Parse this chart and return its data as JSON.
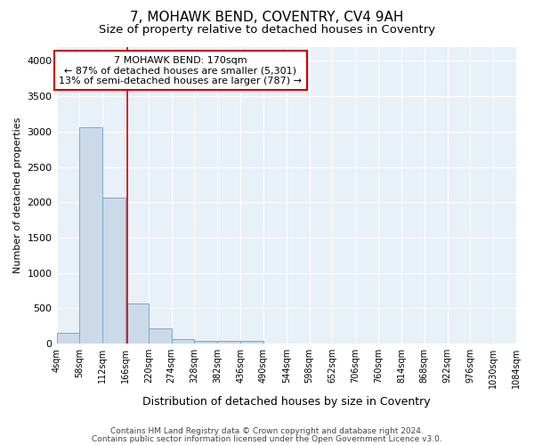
{
  "title": "7, MOHAWK BEND, COVENTRY, CV4 9AH",
  "subtitle": "Size of property relative to detached houses in Coventry",
  "xlabel": "Distribution of detached houses by size in Coventry",
  "ylabel": "Number of detached properties",
  "footnote1": "Contains HM Land Registry data © Crown copyright and database right 2024.",
  "footnote2": "Contains public sector information licensed under the Open Government Licence v3.0.",
  "bin_edges": [
    4,
    58,
    112,
    166,
    220,
    274,
    328,
    382,
    436,
    490,
    544,
    598,
    652,
    706,
    760,
    814,
    868,
    922,
    976,
    1030,
    1084
  ],
  "bar_heights": [
    150,
    3060,
    2060,
    570,
    210,
    65,
    40,
    40,
    40,
    0,
    0,
    0,
    0,
    0,
    0,
    0,
    0,
    0,
    0,
    0
  ],
  "bar_color": "#ccd9e8",
  "bar_edge_color": "#7aaac8",
  "red_line_x": 170,
  "annotation_text": "7 MOHAWK BEND: 170sqm\n← 87% of detached houses are smaller (5,301)\n13% of semi-detached houses are larger (787) →",
  "annotation_box_color": "#ffffff",
  "annotation_box_edge_color": "#cc0000",
  "red_line_color": "#cc0000",
  "ylim": [
    0,
    4200
  ],
  "yticks": [
    0,
    500,
    1000,
    1500,
    2000,
    2500,
    3000,
    3500,
    4000
  ],
  "tick_labels": [
    "4sqm",
    "58sqm",
    "112sqm",
    "166sqm",
    "220sqm",
    "274sqm",
    "328sqm",
    "382sqm",
    "436sqm",
    "490sqm",
    "544sqm",
    "598sqm",
    "652sqm",
    "706sqm",
    "760sqm",
    "814sqm",
    "868sqm",
    "922sqm",
    "976sqm",
    "1030sqm",
    "1084sqm"
  ],
  "background_color": "#e8f0f8",
  "fig_background": "#ffffff",
  "title_fontsize": 11,
  "subtitle_fontsize": 9.5,
  "annotation_fontsize": 8,
  "ylabel_fontsize": 8,
  "xlabel_fontsize": 9,
  "footnote_fontsize": 6.5,
  "ytick_fontsize": 8,
  "xtick_fontsize": 7
}
